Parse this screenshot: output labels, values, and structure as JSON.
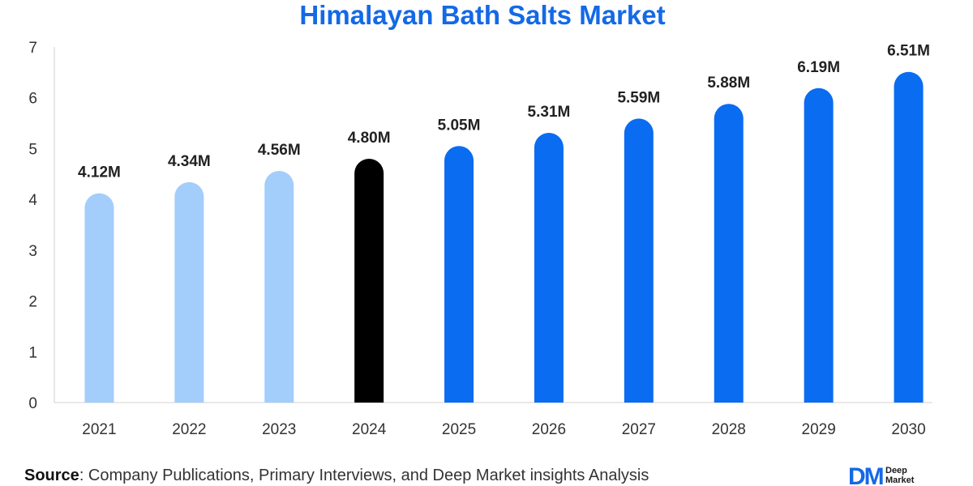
{
  "chart_data": {
    "type": "bar",
    "title": "Himalayan Bath Salts Market",
    "categories": [
      "2021",
      "2022",
      "2023",
      "2024",
      "2025",
      "2026",
      "2027",
      "2028",
      "2029",
      "2030"
    ],
    "values": [
      4.12,
      4.34,
      4.56,
      4.8,
      5.05,
      5.31,
      5.59,
      5.88,
      6.19,
      6.51
    ],
    "data_labels": [
      "4.12M",
      "4.34M",
      "4.56M",
      "4.80M",
      "5.05M",
      "5.31M",
      "5.59M",
      "5.88M",
      "6.19M",
      "6.51M"
    ],
    "bar_colors": [
      "#a3cdfb",
      "#a3cdfb",
      "#a3cdfb",
      "#000000",
      "#0a6cf0",
      "#0a6cf0",
      "#0a6cf0",
      "#0a6cf0",
      "#0a6cf0",
      "#0a6cf0"
    ],
    "y_ticks": [
      "0",
      "1",
      "2",
      "3",
      "4",
      "5",
      "6",
      "7"
    ],
    "ylim": [
      0,
      7
    ],
    "xlabel": "",
    "ylabel": "",
    "grid": false,
    "legend": "none"
  },
  "footer": {
    "source_label": "Source",
    "source_text": ": Company Publications, Primary Interviews, and Deep Market insights Analysis"
  },
  "logo": {
    "mark": "DM",
    "line1": "Deep",
    "line2": "Market"
  }
}
